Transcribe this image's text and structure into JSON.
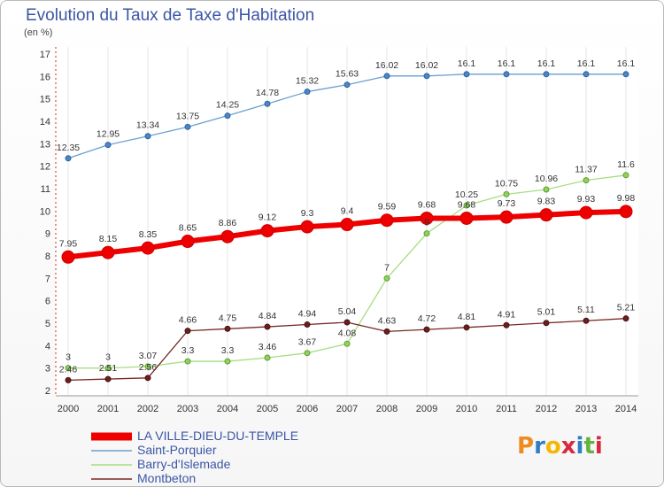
{
  "title": "Evolution du Taux de Taxe d'Habitation",
  "unit_label": "(en %)",
  "logo": {
    "letters": [
      "P",
      "r",
      "o",
      "x",
      "i",
      "t",
      "i"
    ],
    "colors": [
      "#f08a1e",
      "#2e7dc7",
      "#f5b800",
      "#d8283d",
      "#2e7dc7",
      "#64b33f",
      "#d8283d"
    ]
  },
  "chart_data": {
    "type": "line",
    "title": "Evolution du Taux de Taxe d'Habitation",
    "ylabel": "(en %)",
    "xlabel": "",
    "ylim": [
      2,
      17
    ],
    "yticks": [
      "2",
      "3",
      "4",
      "5",
      "6",
      "7",
      "8",
      "9",
      "10",
      "11",
      "12",
      "13",
      "14",
      "15",
      "16",
      "17"
    ],
    "x": [
      "2000",
      "2001",
      "2002",
      "2003",
      "2004",
      "2005",
      "2006",
      "2007",
      "2008",
      "2009",
      "2010",
      "2011",
      "2012",
      "2013",
      "2014"
    ],
    "series": [
      {
        "name": "LA VILLE-DIEU-DU-TEMPLE",
        "color": "#ee0000",
        "values": [
          7.95,
          8.15,
          8.35,
          8.65,
          8.86,
          9.12,
          9.3,
          9.4,
          9.59,
          9.68,
          9.68,
          9.73,
          9.83,
          9.93,
          9.98
        ],
        "labels": [
          "7.95",
          "8.15",
          "8.35",
          "8.65",
          "8.86",
          "9.12",
          "9.3",
          "9.4",
          "9.59",
          "9.68",
          "9.68",
          "9.73",
          "9.83",
          "9.93",
          "9.98"
        ]
      },
      {
        "name": "Saint-Porquier",
        "color": "#6a9fd0",
        "values": [
          12.35,
          12.95,
          13.34,
          13.75,
          14.25,
          14.78,
          15.32,
          15.63,
          16.02,
          16.02,
          16.1,
          16.1,
          16.1,
          16.1,
          16.1
        ],
        "labels": [
          "12.35",
          "12.95",
          "13.34",
          "13.75",
          "14.25",
          "14.78",
          "15.32",
          "15.63",
          "16.02",
          "16.02",
          "16.1",
          "16.1",
          "16.1",
          "16.1",
          "16.1"
        ]
      },
      {
        "name": "Barry-d'Islemade",
        "color": "#a6dd80",
        "values": [
          3,
          3,
          3.07,
          3.3,
          3.3,
          3.46,
          3.67,
          4.08,
          7,
          9,
          10.25,
          10.75,
          10.96,
          11.37,
          11.6
        ],
        "labels": [
          "3",
          "3",
          "3.07",
          "3.3",
          "3.3",
          "3.46",
          "3.67",
          "4.08",
          "7",
          "9",
          "10.25",
          "10.75",
          "10.96",
          "11.37",
          "11.6"
        ]
      },
      {
        "name": "Montbeton",
        "color": "#7a2727",
        "values": [
          2.46,
          2.51,
          2.56,
          4.66,
          4.75,
          4.84,
          4.94,
          5.04,
          4.63,
          4.72,
          4.81,
          4.91,
          5.01,
          5.11,
          5.21
        ],
        "labels": [
          "2.46",
          "2.51",
          "2.56",
          "4.66",
          "4.75",
          "4.84",
          "4.94",
          "5.04",
          "4.63",
          "4.72",
          "4.81",
          "4.91",
          "5.01",
          "5.11",
          "5.21"
        ]
      }
    ],
    "legend": [
      "LA VILLE-DIEU-DU-TEMPLE",
      "Saint-Porquier",
      "Barry-d'Islemade",
      "Montbeton"
    ]
  }
}
